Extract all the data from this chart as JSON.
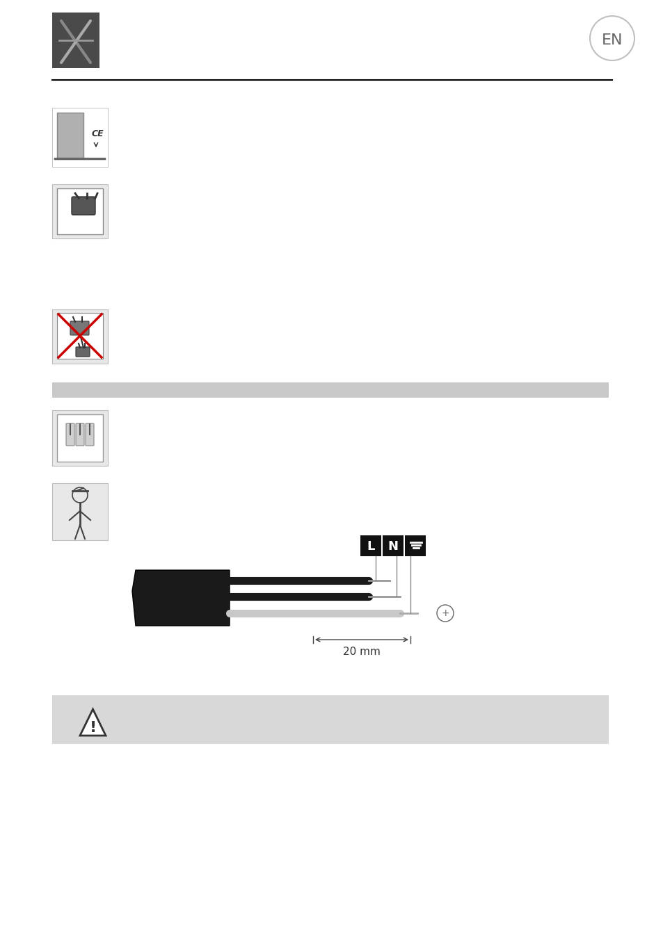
{
  "background_color": "#ffffff",
  "page_bg": "#ffffff",
  "header_line_color": "#000000",
  "section_bar_color": "#c8c8c8",
  "warning_bar_color": "#d8d8d8",
  "en_circle_color": "#c0c0c0",
  "en_text": "EN",
  "icon_bg_dark": "#4a4a4a",
  "icon_bg_light": "#e8e8e8",
  "wire_colors": {
    "black1": "#1a1a1a",
    "black2": "#1a1a1a",
    "white": "#e0e0e0"
  },
  "label_L": "L",
  "label_N": "N",
  "label_ground": "⊥",
  "dimension_text": "20 mm",
  "figsize": [
    9.54,
    13.52
  ],
  "dpi": 100
}
